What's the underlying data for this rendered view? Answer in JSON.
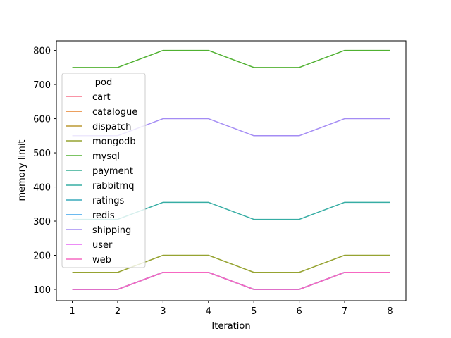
{
  "chart_data": {
    "type": "line",
    "title": "",
    "xlabel": "Iteration",
    "ylabel": "memory limit",
    "x": [
      1,
      2,
      3,
      4,
      5,
      6,
      7,
      8
    ],
    "xlim": [
      0.65,
      8.35
    ],
    "ylim": [
      67,
      828
    ],
    "xticks": [
      1,
      2,
      3,
      4,
      5,
      6,
      7,
      8
    ],
    "yticks": [
      100,
      200,
      300,
      400,
      500,
      600,
      700,
      800
    ],
    "grid": false,
    "legend": {
      "title": "pod",
      "placement": "upper-left"
    },
    "series": [
      {
        "name": "cart",
        "color": "#f77189",
        "values": [
          100,
          100,
          150,
          150,
          100,
          100,
          150,
          150
        ]
      },
      {
        "name": "catalogue",
        "color": "#e5802a",
        "values": [
          100,
          100,
          150,
          150,
          100,
          100,
          150,
          150
        ]
      },
      {
        "name": "dispatch",
        "color": "#bb9832",
        "values": [
          100,
          100,
          150,
          150,
          100,
          100,
          150,
          150
        ]
      },
      {
        "name": "mongodb",
        "color": "#96a331",
        "values": [
          150,
          150,
          200,
          200,
          150,
          150,
          200,
          200
        ]
      },
      {
        "name": "mysql",
        "color": "#50b131",
        "values": [
          750,
          750,
          800,
          800,
          750,
          750,
          800,
          800
        ]
      },
      {
        "name": "payment",
        "color": "#35ae93",
        "values": [
          100,
          100,
          150,
          150,
          100,
          100,
          150,
          150
        ]
      },
      {
        "name": "rabbitmq",
        "color": "#36ada4",
        "values": [
          305,
          305,
          355,
          355,
          305,
          305,
          355,
          355
        ]
      },
      {
        "name": "ratings",
        "color": "#38aabb",
        "values": [
          100,
          100,
          150,
          150,
          100,
          100,
          150,
          150
        ]
      },
      {
        "name": "redis",
        "color": "#3ba3ec",
        "values": [
          100,
          100,
          150,
          150,
          100,
          100,
          150,
          150
        ]
      },
      {
        "name": "shipping",
        "color": "#a48cf4",
        "values": [
          550,
          550,
          600,
          600,
          550,
          550,
          600,
          600
        ]
      },
      {
        "name": "user",
        "color": "#e667f4",
        "values": [
          100,
          100,
          150,
          150,
          100,
          100,
          150,
          150
        ]
      },
      {
        "name": "web",
        "color": "#f668c2",
        "values": [
          100,
          100,
          150,
          150,
          100,
          100,
          150,
          150
        ]
      }
    ]
  }
}
